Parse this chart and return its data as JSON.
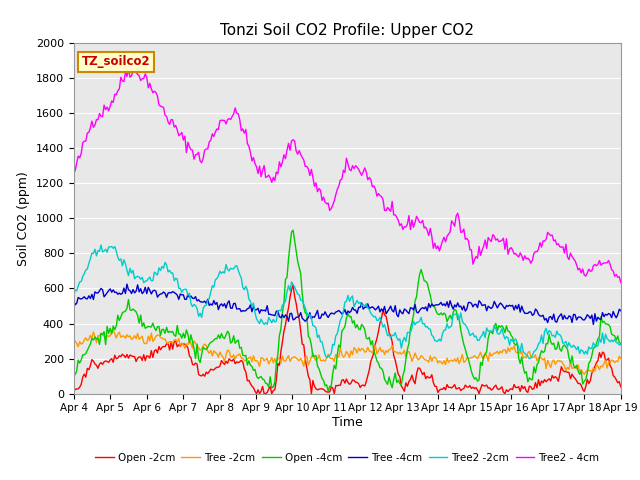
{
  "title": "Tonzi Soil CO2 Profile: Upper CO2",
  "ylabel": "Soil CO2 (ppm)",
  "xlabel": "Time",
  "dataset_label": "TZ_soilco2",
  "ylim": [
    0,
    2000
  ],
  "legend_entries": [
    "Open -2cm",
    "Tree -2cm",
    "Open -4cm",
    "Tree -4cm",
    "Tree2 -2cm",
    "Tree2 - 4cm"
  ],
  "line_colors": [
    "#ff0000",
    "#ff9900",
    "#00cc00",
    "#0000cc",
    "#00cccc",
    "#ff00ff"
  ],
  "x_tick_labels": [
    "Apr 4",
    "Apr 5",
    "Apr 6",
    "Apr 7",
    "Apr 8",
    "Apr 9",
    "Apr 10",
    "Apr 11",
    "Apr 12",
    "Apr 13",
    "Apr 14",
    "Apr 15",
    "Apr 16",
    "Apr 17",
    "Apr 18",
    "Apr 19"
  ]
}
